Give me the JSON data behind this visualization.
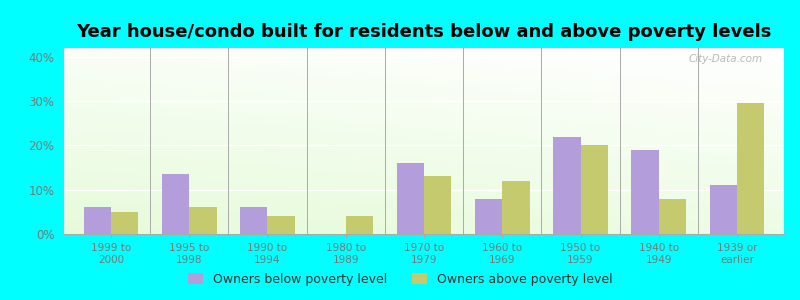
{
  "title": "Year house/condo built for residents below and above poverty levels",
  "categories": [
    "1999 to\n2000",
    "1995 to\n1998",
    "1990 to\n1994",
    "1980 to\n1989",
    "1970 to\n1979",
    "1960 to\n1969",
    "1950 to\n1959",
    "1940 to\n1949",
    "1939 or\nearlier"
  ],
  "below_poverty": [
    6.0,
    13.5,
    6.0,
    0.0,
    16.0,
    8.0,
    22.0,
    19.0,
    11.0
  ],
  "above_poverty": [
    5.0,
    6.0,
    4.0,
    4.0,
    13.0,
    12.0,
    20.0,
    8.0,
    29.5
  ],
  "below_color": "#b39ddb",
  "above_color": "#c5ca6e",
  "ylim": [
    0,
    42
  ],
  "yticks": [
    0,
    10,
    20,
    30,
    40
  ],
  "ytick_labels": [
    "0%",
    "10%",
    "20%",
    "30%",
    "40%"
  ],
  "outer_bg": "#00ffff",
  "bar_width": 0.35,
  "legend_below": "Owners below poverty level",
  "legend_above": "Owners above poverty level",
  "title_fontsize": 13,
  "tick_color": "#777777",
  "watermark": "City-Data.com"
}
